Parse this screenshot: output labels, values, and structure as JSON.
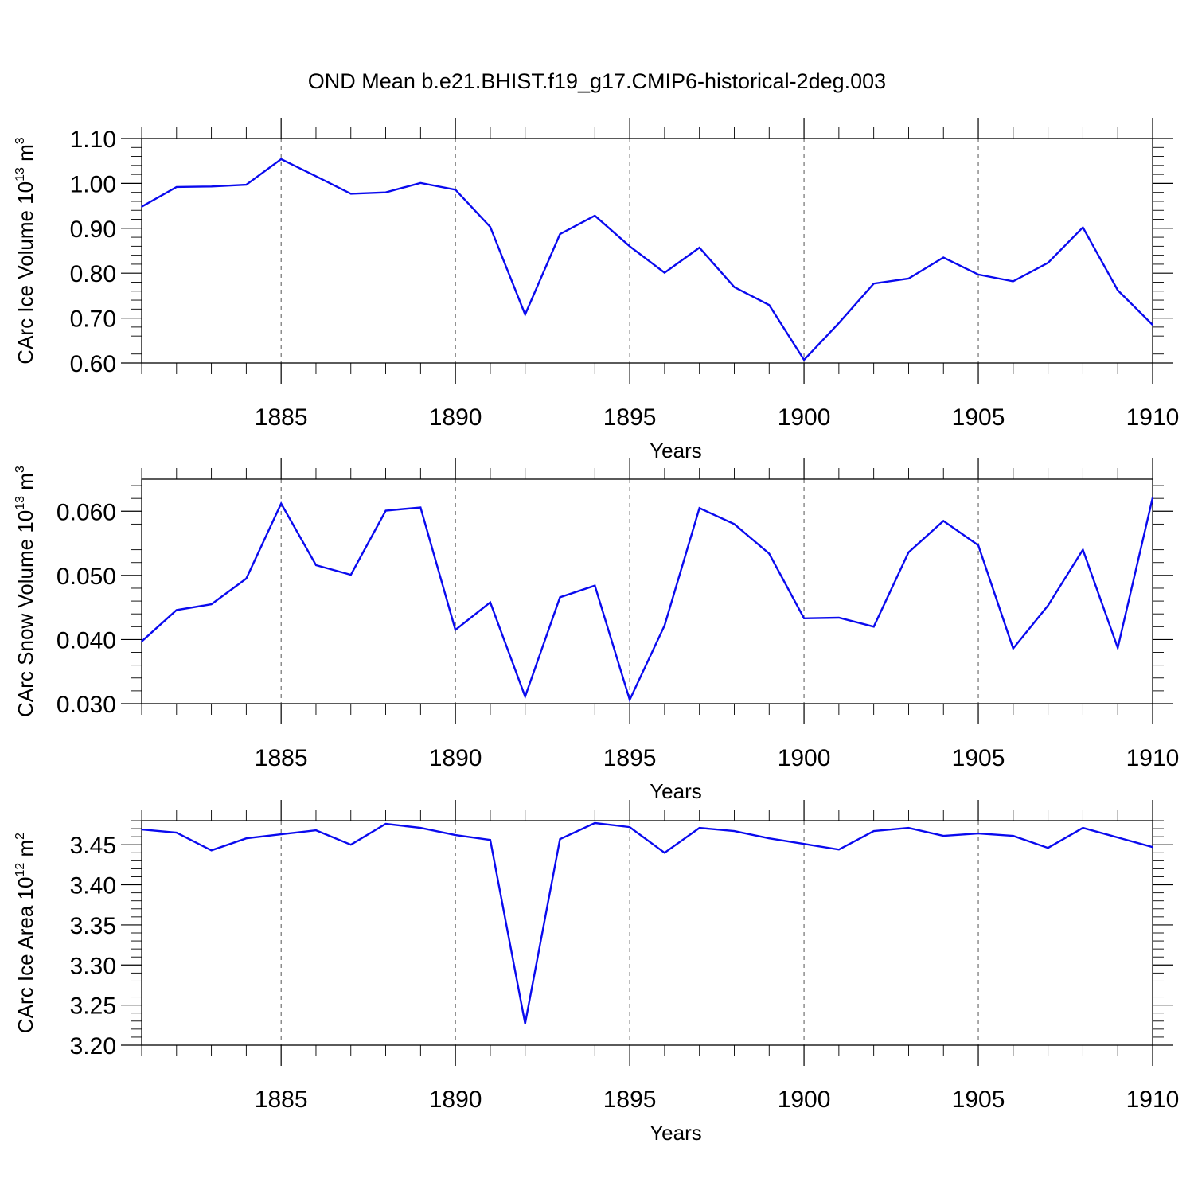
{
  "figure": {
    "title": "OND Mean b.e21.BHIST.f19_g17.CMIP6-historical-2deg.003"
  },
  "chart_data": [
    {
      "type": "line",
      "ylabel": "CArc Ice Volume 10",
      "ylabel_exp": "13",
      "ylabel_unit": " m",
      "ylabel_unit_exp": "3",
      "xlabel": "Years",
      "xlim": [
        1881,
        1910
      ],
      "ylim": [
        0.6,
        1.1
      ],
      "xticks": [
        1885,
        1890,
        1895,
        1900,
        1905,
        1910
      ],
      "yticks": [
        0.6,
        0.7,
        0.8,
        0.9,
        1.0,
        1.1
      ],
      "ytick_labels": [
        "0.60",
        "0.70",
        "0.80",
        "0.90",
        "1.00",
        "1.10"
      ],
      "grid": "x-dashed",
      "x": [
        1881,
        1882,
        1883,
        1884,
        1885,
        1886,
        1887,
        1888,
        1889,
        1890,
        1891,
        1892,
        1893,
        1894,
        1895,
        1896,
        1897,
        1898,
        1899,
        1900,
        1901,
        1902,
        1903,
        1904,
        1905,
        1906,
        1907,
        1908,
        1909,
        1910
      ],
      "series": [
        {
          "color": "#0a0aee",
          "values": [
            0.948,
            0.992,
            0.993,
            0.997,
            1.054,
            1.016,
            0.977,
            0.98,
            1.001,
            0.986,
            0.903,
            0.708,
            0.887,
            0.928,
            0.86,
            0.801,
            0.857,
            0.769,
            0.729,
            0.607,
            0.689,
            0.777,
            0.788,
            0.835,
            0.797,
            0.782,
            0.823,
            0.902,
            0.762,
            0.685
          ]
        }
      ]
    },
    {
      "type": "line",
      "ylabel": "CArc Snow Volume 10",
      "ylabel_exp": "13",
      "ylabel_unit": " m",
      "ylabel_unit_exp": "3",
      "xlabel": "Years",
      "xlim": [
        1881,
        1910
      ],
      "ylim": [
        0.03,
        0.065
      ],
      "xticks": [
        1885,
        1890,
        1895,
        1900,
        1905,
        1910
      ],
      "yticks": [
        0.03,
        0.04,
        0.05,
        0.06
      ],
      "ytick_labels": [
        "0.030",
        "0.040",
        "0.050",
        "0.060"
      ],
      "grid": "x-dashed",
      "x": [
        1881,
        1882,
        1883,
        1884,
        1885,
        1886,
        1887,
        1888,
        1889,
        1890,
        1891,
        1892,
        1893,
        1894,
        1895,
        1896,
        1897,
        1898,
        1899,
        1900,
        1901,
        1902,
        1903,
        1904,
        1905,
        1906,
        1907,
        1908,
        1909,
        1910
      ],
      "series": [
        {
          "color": "#0a0aee",
          "values": [
            0.0397,
            0.0446,
            0.0455,
            0.0495,
            0.0612,
            0.0516,
            0.0501,
            0.0601,
            0.0606,
            0.0415,
            0.0458,
            0.0311,
            0.0466,
            0.0484,
            0.0306,
            0.0422,
            0.0605,
            0.058,
            0.0534,
            0.0433,
            0.0434,
            0.042,
            0.0536,
            0.0585,
            0.0547,
            0.0386,
            0.0453,
            0.054,
            0.0387,
            0.0621
          ]
        }
      ]
    },
    {
      "type": "line",
      "ylabel": "CArc Ice Area 10",
      "ylabel_exp": "12",
      "ylabel_unit": " m",
      "ylabel_unit_exp": "2",
      "xlabel": "Years",
      "xlim": [
        1881,
        1910
      ],
      "ylim": [
        3.2,
        3.48
      ],
      "xticks": [
        1885,
        1890,
        1895,
        1900,
        1905,
        1910
      ],
      "yticks": [
        3.2,
        3.25,
        3.3,
        3.35,
        3.4,
        3.45
      ],
      "ytick_labels": [
        "3.20",
        "3.25",
        "3.30",
        "3.35",
        "3.40",
        "3.45"
      ],
      "grid": "x-dashed",
      "x": [
        1881,
        1882,
        1883,
        1884,
        1885,
        1886,
        1887,
        1888,
        1889,
        1890,
        1891,
        1892,
        1893,
        1894,
        1895,
        1896,
        1897,
        1898,
        1899,
        1900,
        1901,
        1902,
        1903,
        1904,
        1905,
        1906,
        1907,
        1908,
        1909,
        1910
      ],
      "series": [
        {
          "color": "#0a0aee",
          "values": [
            3.469,
            3.465,
            3.443,
            3.458,
            3.463,
            3.468,
            3.45,
            3.476,
            3.471,
            3.462,
            3.456,
            3.227,
            3.457,
            3.477,
            3.472,
            3.44,
            3.471,
            3.467,
            3.458,
            3.451,
            3.444,
            3.467,
            3.471,
            3.461,
            3.464,
            3.461,
            3.446,
            3.471,
            3.459,
            3.447
          ]
        }
      ]
    }
  ]
}
